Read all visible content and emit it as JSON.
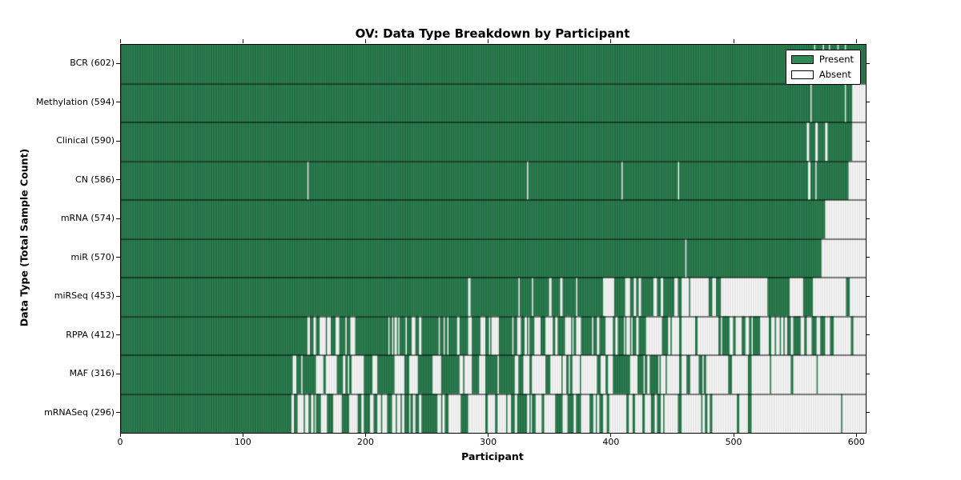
{
  "title": "OV: Data Type Breakdown by Participant",
  "xlabel": "Participant",
  "ylabel": "Data Type (Total Sample Count)",
  "legend": {
    "present_label": "Present",
    "absent_label": "Absent"
  },
  "colors": {
    "present": "#2e8b57",
    "absent": "#ffffff",
    "present_edge": "rgba(0,0,0,0.45)",
    "absent_edge": "rgba(0,0,0,0.20)",
    "separator": "#000000",
    "axis": "#000000"
  },
  "x_ticks": [
    0,
    100,
    200,
    300,
    400,
    500,
    600
  ],
  "chart_data": {
    "type": "heatmap",
    "title": "OV: Data Type Breakdown by Participant",
    "xlabel": "Participant",
    "ylabel": "Data Type (Total Sample Count)",
    "legend_entries": [
      "Present",
      "Absent"
    ],
    "legend_position": "upper right",
    "x_range": [
      0,
      607
    ],
    "n_participants": 607,
    "cell_states": [
      "present",
      "absent"
    ],
    "segment_encoding": "segments are [start,end,state]; state 'p'=present, 'a'=absent, number=fraction of participants present (striped mixed region)",
    "rows": [
      {
        "name": "BCR",
        "count": 602,
        "label": "BCR (602)",
        "segments": [
          [
            0,
            565,
            "p"
          ],
          [
            565,
            566,
            "a"
          ],
          [
            566,
            572,
            "p"
          ],
          [
            572,
            573,
            "a"
          ],
          [
            573,
            577,
            "p"
          ],
          [
            577,
            578,
            "a"
          ],
          [
            578,
            584,
            "p"
          ],
          [
            584,
            585,
            "a"
          ],
          [
            585,
            590,
            "p"
          ],
          [
            590,
            591,
            "a"
          ],
          [
            591,
            607,
            "p"
          ]
        ]
      },
      {
        "name": "Methylation",
        "count": 594,
        "label": "Methylation (594)",
        "segments": [
          [
            0,
            562,
            "p"
          ],
          [
            562,
            563,
            "a"
          ],
          [
            563,
            590,
            "p"
          ],
          [
            590,
            591,
            "a"
          ],
          [
            591,
            596,
            "p"
          ],
          [
            596,
            607,
            "a"
          ]
        ]
      },
      {
        "name": "Clinical",
        "count": 590,
        "label": "Clinical (590)",
        "segments": [
          [
            0,
            559,
            "p"
          ],
          [
            559,
            561,
            "a"
          ],
          [
            561,
            566,
            "p"
          ],
          [
            566,
            568,
            "a"
          ],
          [
            568,
            574,
            "p"
          ],
          [
            574,
            576,
            "a"
          ],
          [
            576,
            596,
            "p"
          ],
          [
            596,
            607,
            "a"
          ]
        ]
      },
      {
        "name": "CN",
        "count": 586,
        "label": "CN (586)",
        "segments": [
          [
            0,
            152,
            "p"
          ],
          [
            152,
            153,
            "a"
          ],
          [
            153,
            331,
            "p"
          ],
          [
            331,
            332,
            "a"
          ],
          [
            332,
            408,
            "p"
          ],
          [
            408,
            409,
            "a"
          ],
          [
            409,
            454,
            "p"
          ],
          [
            454,
            455,
            "a"
          ],
          [
            455,
            560,
            "p"
          ],
          [
            560,
            562,
            "a"
          ],
          [
            562,
            566,
            "p"
          ],
          [
            566,
            567,
            "a"
          ],
          [
            567,
            593,
            "p"
          ],
          [
            593,
            607,
            "a"
          ]
        ]
      },
      {
        "name": "mRNA",
        "count": 574,
        "label": "mRNA (574)",
        "segments": [
          [
            0,
            574,
            "p"
          ],
          [
            574,
            607,
            "a"
          ]
        ]
      },
      {
        "name": "miR",
        "count": 570,
        "label": "miR (570)",
        "segments": [
          [
            0,
            460,
            "p"
          ],
          [
            460,
            461,
            "a"
          ],
          [
            461,
            571,
            "p"
          ],
          [
            571,
            607,
            "a"
          ]
        ]
      },
      {
        "name": "miRSeq",
        "count": 453,
        "label": "miRSeq (453)",
        "segments": [
          [
            0,
            283,
            "p"
          ],
          [
            283,
            285,
            "a"
          ],
          [
            285,
            324,
            "p"
          ],
          [
            324,
            325,
            "a"
          ],
          [
            325,
            335,
            "p"
          ],
          [
            335,
            336,
            "a"
          ],
          [
            336,
            349,
            "p"
          ],
          [
            349,
            350,
            "a"
          ],
          [
            350,
            390,
            0.85
          ],
          [
            390,
            462,
            0.65
          ],
          [
            462,
            528,
            0.12
          ],
          [
            528,
            545,
            "p"
          ],
          [
            545,
            556,
            "a"
          ],
          [
            556,
            564,
            "p"
          ],
          [
            564,
            607,
            0.08
          ]
        ]
      },
      {
        "name": "RPPA",
        "count": 412,
        "label": "RPPA (412)",
        "segments": [
          [
            0,
            138,
            "p"
          ],
          [
            138,
            320,
            0.72
          ],
          [
            320,
            450,
            0.58
          ],
          [
            450,
            560,
            0.45
          ],
          [
            560,
            601,
            0.3
          ],
          [
            601,
            607,
            "a"
          ]
        ]
      },
      {
        "name": "MAF",
        "count": 316,
        "label": "MAF (316)",
        "segments": [
          [
            0,
            139,
            "p"
          ],
          [
            139,
            260,
            0.55
          ],
          [
            260,
            440,
            0.42
          ],
          [
            440,
            530,
            0.3
          ],
          [
            530,
            607,
            0.08
          ]
        ]
      },
      {
        "name": "mRNASeq",
        "count": 296,
        "label": "mRNASeq (296)",
        "segments": [
          [
            0,
            139,
            "p"
          ],
          [
            139,
            255,
            0.6
          ],
          [
            255,
            375,
            0.45
          ],
          [
            375,
            515,
            0.25
          ],
          [
            515,
            607,
            0.03
          ]
        ]
      }
    ]
  }
}
